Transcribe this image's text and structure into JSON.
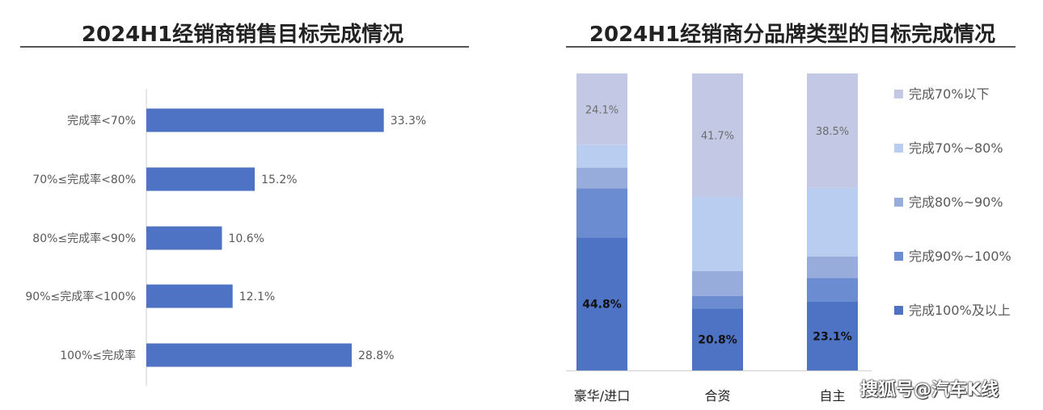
{
  "charts": {
    "left_title": "2024H1经销商销售目标完成情况",
    "right_title": "2024H1经销商分品牌类型的目标完成情况"
  },
  "watermark": "搜狐号@汽车K线",
  "colors": {
    "left_bar": "#4f73c4",
    "stack": [
      "#4f73c4",
      "#6b8cd0",
      "#98acdc",
      "#b9cdf0",
      "#c3c8e4"
    ]
  },
  "chart_data": [
    {
      "type": "bar",
      "orientation": "horizontal",
      "title": "2024H1经销商销售目标完成情况",
      "categories": [
        "完成率<70%",
        "70%≤完成率<80%",
        "80%≤完成率<90%",
        "90%≤完成率<100%",
        "100%≤完成率"
      ],
      "values": [
        33.3,
        15.2,
        10.6,
        12.1,
        28.8
      ],
      "labels": [
        "33.3%",
        "15.2%",
        "10.6%",
        "12.1%",
        "28.8%"
      ],
      "xlim": [
        0,
        50
      ],
      "grid": false
    },
    {
      "type": "bar",
      "stacked": true,
      "title": "2024H1经销商分品牌类型的目标完成情况",
      "categories": [
        "豪华/进口",
        "合资",
        "自主"
      ],
      "series": [
        {
          "name": "完成100%及以上",
          "values": [
            44.8,
            20.8,
            23.1
          ],
          "labels": [
            "44.8%",
            "20.8%",
            "23.1%"
          ]
        },
        {
          "name": "完成90%~100%",
          "values": [
            16.5,
            4.2,
            8.0
          ],
          "labels": [
            "",
            "",
            ""
          ]
        },
        {
          "name": "完成80%~90%",
          "values": [
            7.0,
            8.5,
            7.3
          ],
          "labels": [
            "",
            "",
            ""
          ]
        },
        {
          "name": "完成70%~80%",
          "values": [
            7.6,
            24.8,
            23.1
          ],
          "labels": [
            "",
            "",
            ""
          ]
        },
        {
          "name": "完成70%以下",
          "values": [
            24.1,
            41.7,
            38.5
          ],
          "labels": [
            "24.1%",
            "41.7%",
            "38.5%"
          ]
        }
      ],
      "legend_order": [
        "完成70%以下",
        "完成70%~80%",
        "完成80%~90%",
        "完成90%~100%",
        "完成100%及以上"
      ],
      "ylim": [
        0,
        100
      ],
      "legend": "right"
    }
  ]
}
